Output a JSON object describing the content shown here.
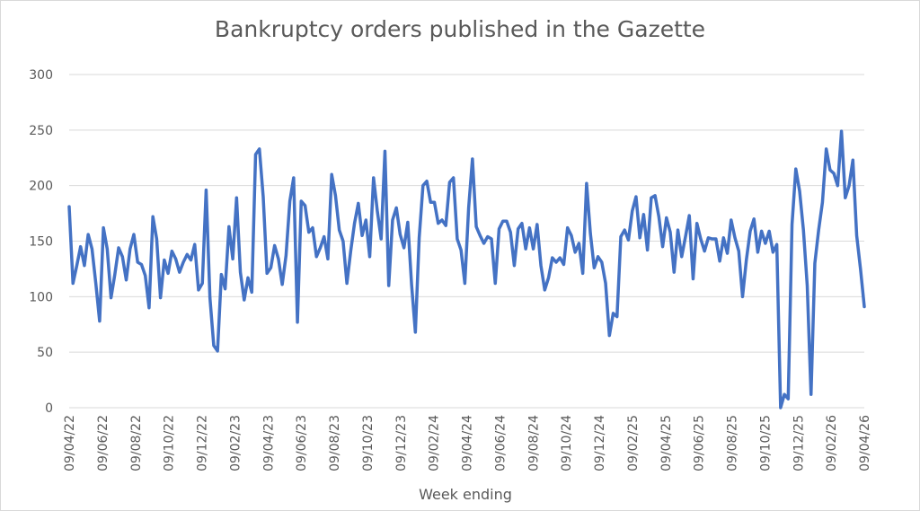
{
  "chart_data": {
    "type": "line",
    "title": "Bankruptcy orders published in the Gazette",
    "xlabel": "Week ending",
    "ylabel": "",
    "ylim": [
      0,
      300
    ],
    "yticks": [
      0,
      50,
      100,
      150,
      200,
      250,
      300
    ],
    "xticks": [
      "09/04/22",
      "09/06/22",
      "09/08/22",
      "09/10/22",
      "09/12/22",
      "09/02/23",
      "09/04/23",
      "09/06/23",
      "09/08/23",
      "09/10/23",
      "09/12/23",
      "09/02/24",
      "09/04/24",
      "09/06/24",
      "09/08/24",
      "09/10/24",
      "09/12/24",
      "09/02/25",
      "09/04/25",
      "09/06/25",
      "09/08/25",
      "09/10/25",
      "09/12/25",
      "09/02/26",
      "09/04/26"
    ],
    "grid": true,
    "legend": "none",
    "color": "#4472C4",
    "series": [
      {
        "values": [
          181,
          112,
          128,
          145,
          128,
          156,
          143,
          112,
          78,
          162,
          143,
          99,
          120,
          144,
          136,
          115,
          143,
          156,
          131,
          129,
          119,
          90,
          172,
          152,
          99,
          133,
          121,
          141,
          134,
          122,
          131,
          138,
          133,
          147,
          106,
          112,
          196,
          99,
          56,
          51,
          120,
          107,
          163,
          134,
          189,
          122,
          97,
          117,
          104,
          228,
          233,
          190,
          121,
          126,
          146,
          134,
          111,
          137,
          186,
          207,
          77,
          186,
          182,
          158,
          162,
          136,
          144,
          154,
          134,
          210,
          191,
          160,
          150,
          112,
          141,
          166,
          184,
          155,
          169,
          136,
          207,
          177,
          152,
          231,
          110,
          169,
          180,
          156,
          144,
          167,
          111,
          68,
          153,
          200,
          204,
          185,
          185,
          166,
          169,
          164,
          203,
          207,
          152,
          142,
          112,
          180,
          224,
          163,
          155,
          148,
          154,
          152,
          112,
          161,
          168,
          168,
          158,
          128,
          161,
          166,
          143,
          162,
          143,
          165,
          128,
          106,
          117,
          135,
          131,
          135,
          129,
          162,
          155,
          140,
          148,
          121,
          202,
          157,
          126,
          136,
          131,
          112,
          65,
          85,
          82,
          154,
          160,
          151,
          177,
          190,
          153,
          174,
          142,
          189,
          191,
          172,
          145,
          171,
          158,
          122,
          160,
          136,
          154,
          173,
          116,
          166,
          152,
          141,
          153,
          152,
          152,
          132,
          153,
          139,
          169,
          153,
          141,
          100,
          133,
          159,
          170,
          140,
          159,
          148,
          159,
          140,
          147,
          0,
          12,
          8,
          165,
          215,
          195,
          160,
          110,
          12,
          130,
          160,
          185,
          233,
          214,
          211,
          200,
          249,
          189,
          200,
          223,
          155,
          125,
          91
        ]
      }
    ]
  }
}
